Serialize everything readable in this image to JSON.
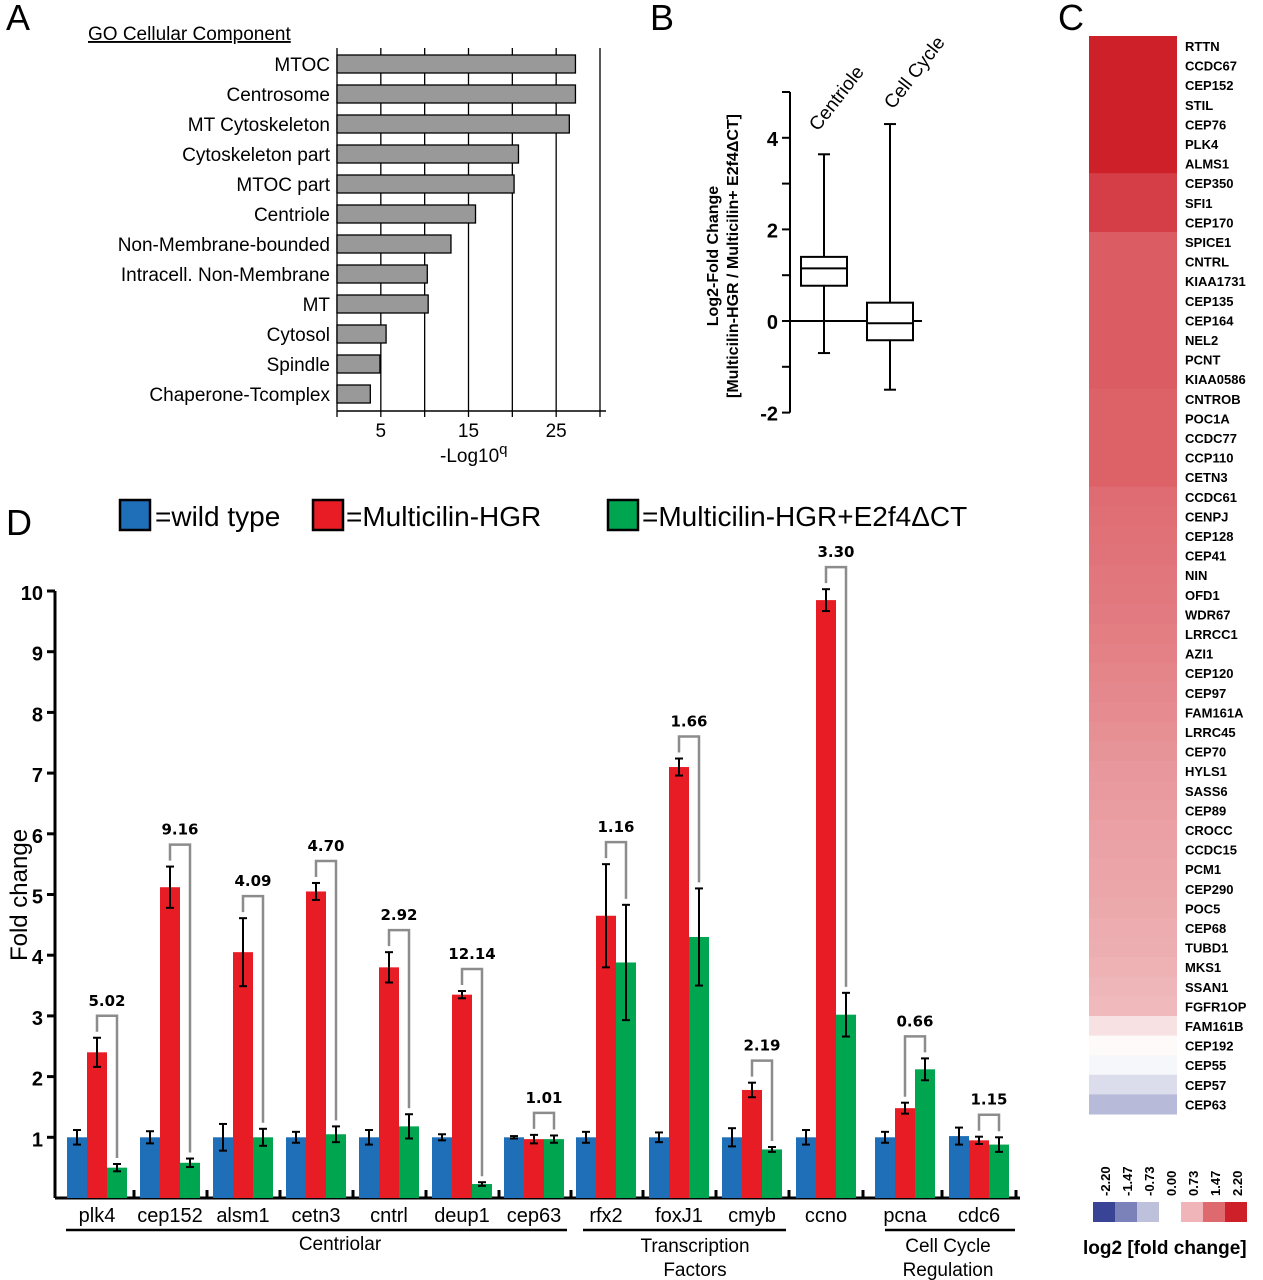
{
  "panels": {
    "a": "A",
    "b": "B",
    "c": "C",
    "d": "D"
  },
  "colors": {
    "wild_type": "#1f6fb8",
    "multicilin": "#e81c24",
    "multicilin_e2f4": "#00a54f",
    "go_bar": "#999999",
    "ratio_bracket": "#8c8c8c"
  },
  "chart_data": [
    {
      "id": "A",
      "type": "bar",
      "orientation": "horizontal",
      "title": "GO Cellular Component",
      "xlabel": "-Log10q",
      "xlim": [
        0,
        30
      ],
      "xticks": [
        5,
        15,
        25
      ],
      "gridlines": [
        5,
        10,
        15,
        20,
        25,
        30
      ],
      "categories": [
        "MTOC",
        "Centrosome",
        "MT Cytoskeleton",
        "Cytoskeleton part",
        "MTOC part",
        "Centriole",
        "Non-Membrane-bounded",
        "Intracell. Non-Membrane",
        "MT",
        "Cytosol",
        "Spindle",
        "Chaperone-Tcomplex"
      ],
      "values": [
        27.2,
        27.2,
        26.5,
        20.7,
        20.2,
        15.8,
        13.0,
        10.3,
        10.4,
        5.6,
        4.9,
        3.8
      ]
    },
    {
      "id": "B",
      "type": "box",
      "ylabel_line1": "Log2-Fold Change",
      "ylabel_line2": "[Multicilin-HGR / Multicilin+ E2f4ΔCT]",
      "ylim": [
        -2,
        5
      ],
      "yticks": [
        -2,
        0,
        2,
        4
      ],
      "minor_ticks": [
        -1,
        1,
        3,
        5
      ],
      "categories": [
        "Centriole",
        "Cell Cycle"
      ],
      "boxes": [
        {
          "name": "Centriole",
          "min": -0.7,
          "q1": 0.77,
          "median": 1.15,
          "q3": 1.4,
          "max": 3.64
        },
        {
          "name": "Cell Cycle",
          "min": -1.5,
          "q1": -0.42,
          "median": -0.05,
          "q3": 0.4,
          "max": 4.3
        }
      ]
    },
    {
      "id": "C",
      "type": "heatmap",
      "color_label": "log2 [fold change]",
      "legend_ticks": [
        "-2.20",
        "-1.47",
        "-0.73",
        "0.00",
        "0.73",
        "1.47",
        "2.20"
      ],
      "genes": [
        "RTTN",
        "CCDC67",
        "CEP152",
        "STIL",
        "CEP76",
        "PLK4",
        "ALMS1",
        "CEP350",
        "SFI1",
        "CEP170",
        "SPICE1",
        "CNTRL",
        "KIAA1731",
        "CEP135",
        "CEP164",
        "NEL2",
        "PCNT",
        "KIAA0586",
        "CNTROB",
        "POC1A",
        "CCDC77",
        "CCP110",
        "CETN3",
        "CCDC61",
        "CENPJ",
        "CEP128",
        "CEP41",
        "NIN",
        "OFD1",
        "WDR67",
        "LRRCC1",
        "AZI1",
        "CEP120",
        "CEP97",
        "FAM161A",
        "LRRC45",
        "CEP70",
        "HYLS1",
        "SASS6",
        "CEP89",
        "CROCC",
        "CCDC15",
        "PCM1",
        "CEP290",
        "POC5",
        "CEP68",
        "TUBD1",
        "MKS1",
        "SSAN1",
        "FGFR1OP",
        "FAM161B",
        "CEP192",
        "CEP55",
        "CEP57",
        "CEP63"
      ],
      "values": [
        2.2,
        2.2,
        2.2,
        2.2,
        2.2,
        2.2,
        2.2,
        1.9,
        1.9,
        1.9,
        1.6,
        1.6,
        1.6,
        1.6,
        1.6,
        1.6,
        1.6,
        1.6,
        1.55,
        1.55,
        1.55,
        1.55,
        1.55,
        1.45,
        1.42,
        1.4,
        1.38,
        1.35,
        1.33,
        1.3,
        1.27,
        1.24,
        1.2,
        1.17,
        1.14,
        1.1,
        1.06,
        1.02,
        1.0,
        0.97,
        0.94,
        0.92,
        0.9,
        0.88,
        0.85,
        0.82,
        0.8,
        0.76,
        0.72,
        0.68,
        0.3,
        0.05,
        -0.1,
        -0.4,
        -0.8
      ]
    },
    {
      "id": "D",
      "type": "bar",
      "ylabel": "Fold change",
      "ylim": [
        0,
        10
      ],
      "yticks": [
        1,
        2,
        3,
        4,
        5,
        6,
        7,
        8,
        9,
        10
      ],
      "legend": [
        {
          "key": "wild_type",
          "label": "=wild type"
        },
        {
          "key": "multicilin",
          "label": "=Multicilin-HGR"
        },
        {
          "key": "multicilin_e2f4",
          "label": "=Multicilin-HGR+E2f4ΔCT"
        }
      ],
      "categories": [
        "plk4",
        "cep152",
        "alsm1",
        "cetn3",
        "cntrl",
        "deup1",
        "cep63",
        "rfx2",
        "foxJ1",
        "cmyb",
        "ccno",
        "pcna",
        "cdc6"
      ],
      "series": [
        {
          "name": "wild type",
          "values": [
            1.0,
            1.0,
            1.0,
            1.0,
            1.0,
            1.0,
            1.0,
            1.0,
            1.0,
            1.0,
            1.0,
            1.0,
            1.02
          ],
          "errors": [
            0.12,
            0.1,
            0.22,
            0.09,
            0.12,
            0.05,
            0.02,
            0.09,
            0.08,
            0.15,
            0.12,
            0.09,
            0.14
          ]
        },
        {
          "name": "Multicilin-HGR",
          "values": [
            2.4,
            5.12,
            4.05,
            5.05,
            3.8,
            3.35,
            0.97,
            4.65,
            7.1,
            1.78,
            9.85,
            1.48,
            0.95
          ],
          "errors": [
            0.24,
            0.34,
            0.56,
            0.14,
            0.25,
            0.06,
            0.07,
            0.85,
            0.14,
            0.12,
            0.18,
            0.09,
            0.06
          ]
        },
        {
          "name": "Multicilin-HGR+E2f4ΔCT",
          "values": [
            0.5,
            0.58,
            1.0,
            1.05,
            1.18,
            0.23,
            0.97,
            3.88,
            4.3,
            0.8,
            3.02,
            2.12,
            0.88
          ],
          "errors": [
            0.06,
            0.07,
            0.14,
            0.13,
            0.2,
            0.03,
            0.06,
            0.95,
            0.8,
            0.04,
            0.36,
            0.18,
            0.12
          ]
        }
      ],
      "ratio_annotations": [
        "5.02",
        "9.16",
        "4.09",
        "4.70",
        "2.92",
        "12.14",
        "1.01",
        "1.16",
        "1.66",
        "2.19",
        "3.30",
        "0.66",
        "1.15"
      ],
      "groups": [
        {
          "label": "Centriolar",
          "members": [
            "plk4",
            "cep152",
            "alsm1",
            "cetn3",
            "cntrl",
            "deup1",
            "cep63"
          ]
        },
        {
          "label": "Transcription Factors",
          "line1": "Transcription",
          "line2": "Factors",
          "members": [
            "rfx2",
            "foxJ1",
            "cmyb"
          ]
        },
        {
          "label": "Cell Cycle Regulation",
          "line1": "Cell Cycle",
          "line2": "Regulation",
          "members": [
            "pcna",
            "cdc6"
          ]
        }
      ]
    }
  ]
}
